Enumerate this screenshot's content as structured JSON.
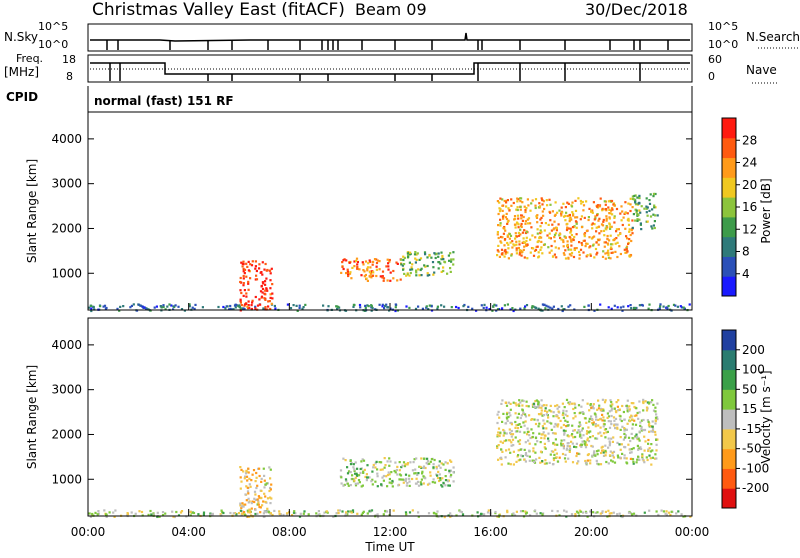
{
  "header": {
    "title": "Christmas Valley East (fitACF)",
    "beam": "Beam 09",
    "date": "30/Dec/2018"
  },
  "top_panels": {
    "nsky_label": "N.Sky",
    "nsearch_label": "N.Search",
    "nsky_ticks": [
      "10^5",
      "10^0"
    ],
    "freq_label": "Freq.",
    "freq_unit": "[MHz]",
    "freq_ticks": [
      "18",
      "8"
    ],
    "nave_label": "Nave",
    "nave_ticks": [
      "60",
      "0"
    ],
    "cpid_label": "CPID",
    "cpid_text": "normal (fast) 151 RF"
  },
  "chart_data": [
    {
      "type": "heatmap",
      "name": "Power",
      "ylabel": "Slant Range [km]",
      "yticks": [
        "4000",
        "3000",
        "2000",
        "1000"
      ],
      "ylim": [
        180,
        4600
      ],
      "colorbar_label": "Power [dB]",
      "colorbar_ticks": [
        "28",
        "24",
        "20",
        "16",
        "12",
        "8",
        "4"
      ],
      "colors": [
        "#1a1aff",
        "#2b50b8",
        "#2f7a7a",
        "#3d9b4a",
        "#8cc43c",
        "#f0c820",
        "#ff9a1a",
        "#ff5a10",
        "#ff1a10"
      ],
      "regions": [
        {
          "x": [
            0.0,
            23.9
          ],
          "y": [
            180,
            330
          ],
          "level": 0.25,
          "note": "near-range clutter"
        },
        {
          "x": [
            6.0,
            7.3
          ],
          "y": [
            180,
            1300
          ],
          "level": 0.95
        },
        {
          "x": [
            10.0,
            12.4
          ],
          "y": [
            850,
            1350
          ],
          "level": 0.8
        },
        {
          "x": [
            12.4,
            14.5
          ],
          "y": [
            950,
            1500
          ],
          "level": 0.45
        },
        {
          "x": [
            16.2,
            21.6
          ],
          "y": [
            1350,
            2700
          ],
          "level": 0.7
        },
        {
          "x": [
            21.6,
            22.6
          ],
          "y": [
            2000,
            2800
          ],
          "level": 0.4
        }
      ]
    },
    {
      "type": "heatmap",
      "name": "Velocity",
      "ylabel": "Slant Range [km]",
      "yticks": [
        "4000",
        "3000",
        "2000",
        "1000"
      ],
      "ylim": [
        180,
        4600
      ],
      "colorbar_label": "Velocity [m s⁻¹]",
      "colorbar_ticks": [
        "200",
        "100",
        "50",
        "15",
        "-15",
        "-50",
        "-100",
        "-200"
      ],
      "colors": [
        "#e01010",
        "#ff5a10",
        "#ff9a1a",
        "#f2c84a",
        "#bebebe",
        "#7fc83c",
        "#3aa048",
        "#2a7c70",
        "#2040a0"
      ],
      "regions": [
        {
          "x": [
            0.0,
            23.9
          ],
          "y": [
            180,
            330
          ],
          "level": 0.55
        },
        {
          "x": [
            6.0,
            7.3
          ],
          "y": [
            180,
            1300
          ],
          "level": 0.4
        },
        {
          "x": [
            10.0,
            14.5
          ],
          "y": [
            850,
            1500
          ],
          "level": 0.55
        },
        {
          "x": [
            16.2,
            22.6
          ],
          "y": [
            1350,
            2800
          ],
          "level": 0.5
        }
      ]
    }
  ],
  "time_axis": {
    "ticks": [
      "00:00",
      "04:00",
      "08:00",
      "12:00",
      "16:00",
      "20:00",
      "00:00"
    ],
    "label": "Time UT"
  }
}
